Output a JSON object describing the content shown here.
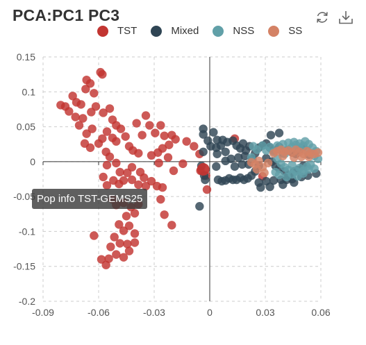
{
  "title": "PCA:PC1 PC3",
  "toolbar": {
    "refresh_icon": "refresh-icon",
    "download_icon": "download-icon"
  },
  "tooltip": {
    "text": "Pop info TST-GEMS25"
  },
  "chart_data": {
    "type": "scatter",
    "title": "PCA:PC1 PC3",
    "xlabel": "",
    "ylabel": "",
    "xlim": [
      -0.09,
      0.06
    ],
    "ylim": [
      -0.2,
      0.15
    ],
    "xticks": [
      "-0.09",
      "-0.06",
      "-0.03",
      "0",
      "0.03",
      "0.06"
    ],
    "yticks": [
      "0.15",
      "0.1",
      "0.05",
      "0",
      "-0.05",
      "-0.1",
      "-0.15",
      "-0.2"
    ],
    "grid": true,
    "legend_position": "top",
    "series": [
      {
        "name": "TST",
        "color": "#c23531",
        "points": [
          [
            -0.0805,
            0.081
          ],
          [
            -0.078,
            0.079
          ],
          [
            -0.076,
            0.072
          ],
          [
            -0.074,
            0.094
          ],
          [
            -0.072,
            0.085
          ],
          [
            -0.0695,
            0.082
          ],
          [
            -0.067,
            0.104
          ],
          [
            -0.0665,
            0.117
          ],
          [
            -0.0645,
            0.112
          ],
          [
            -0.0625,
            0.098
          ],
          [
            -0.0615,
            0.079
          ],
          [
            -0.064,
            0.071
          ],
          [
            -0.0725,
            0.064
          ],
          [
            -0.0685,
            0.062
          ],
          [
            -0.0635,
            0.047
          ],
          [
            -0.0705,
            0.052
          ],
          [
            -0.0665,
            0.04
          ],
          [
            -0.0675,
            0.026
          ],
          [
            -0.0645,
            0.02
          ],
          [
            -0.059,
            0.128
          ],
          [
            -0.058,
            0.125
          ],
          [
            -0.0575,
            0.07
          ],
          [
            -0.054,
            0.076
          ],
          [
            -0.0525,
            0.06
          ],
          [
            -0.0505,
            0.052
          ],
          [
            -0.048,
            0.047
          ],
          [
            -0.0555,
            0.043
          ],
          [
            -0.058,
            0.033
          ],
          [
            -0.0525,
            0.034
          ],
          [
            -0.06,
            0.026
          ],
          [
            -0.056,
            0.014
          ],
          [
            -0.0505,
            0.029
          ],
          [
            -0.0455,
            0.036
          ],
          [
            -0.0435,
            0.022
          ],
          [
            -0.0415,
            0.016
          ],
          [
            -0.0395,
            0.055
          ],
          [
            -0.0345,
            0.066
          ],
          [
            -0.0325,
            0.052
          ],
          [
            -0.0295,
            0.041
          ],
          [
            -0.0265,
            0.052
          ],
          [
            -0.0245,
            0.037
          ],
          [
            -0.0205,
            0.038
          ],
          [
            -0.0185,
            0.032
          ],
          [
            -0.022,
            0.024
          ],
          [
            -0.0255,
            0.019
          ],
          [
            -0.028,
            0.013
          ],
          [
            -0.0315,
            0.009
          ],
          [
            -0.0365,
            0.038
          ],
          [
            -0.0385,
            0.012
          ],
          [
            -0.0275,
            -0.002
          ],
          [
            -0.0225,
            0.006
          ],
          [
            -0.0195,
            -0.013
          ],
          [
            -0.0145,
            -0.003
          ],
          [
            -0.0125,
            0.029
          ],
          [
            -0.0085,
            0.022
          ],
          [
            -0.0055,
            0.011
          ],
          [
            -0.054,
            0.007
          ],
          [
            -0.0555,
            -0.005
          ],
          [
            -0.0505,
            -0.002
          ],
          [
            -0.0485,
            -0.015
          ],
          [
            -0.0445,
            -0.016
          ],
          [
            -0.042,
            -0.008
          ],
          [
            -0.052,
            -0.027
          ],
          [
            -0.049,
            -0.032
          ],
          [
            -0.0465,
            -0.027
          ],
          [
            -0.042,
            -0.026
          ],
          [
            -0.0355,
            -0.023
          ],
          [
            -0.0385,
            -0.033
          ],
          [
            -0.0345,
            -0.035
          ],
          [
            -0.0315,
            -0.028
          ],
          [
            -0.0285,
            -0.035
          ],
          [
            -0.0255,
            -0.037
          ],
          [
            -0.0265,
            -0.054
          ],
          [
            -0.0245,
            -0.076
          ],
          [
            -0.0205,
            -0.091
          ],
          [
            -0.0525,
            -0.054
          ],
          [
            -0.0505,
            -0.062
          ],
          [
            -0.0465,
            -0.059
          ],
          [
            -0.0425,
            -0.065
          ],
          [
            -0.0385,
            -0.061
          ],
          [
            -0.0405,
            -0.074
          ],
          [
            -0.045,
            -0.078
          ],
          [
            -0.049,
            -0.09
          ],
          [
            -0.0465,
            -0.099
          ],
          [
            -0.0435,
            -0.092
          ],
          [
            -0.0405,
            -0.103
          ],
          [
            -0.0515,
            -0.108
          ],
          [
            -0.0485,
            -0.117
          ],
          [
            -0.0445,
            -0.118
          ],
          [
            -0.0405,
            -0.116
          ],
          [
            -0.0535,
            -0.122
          ],
          [
            -0.0505,
            -0.133
          ],
          [
            -0.0465,
            -0.137
          ],
          [
            -0.0435,
            -0.128
          ],
          [
            -0.0585,
            -0.14
          ],
          [
            -0.056,
            -0.148
          ],
          [
            -0.0545,
            -0.139
          ],
          [
            -0.0625,
            -0.106
          ],
          [
            -0.0575,
            -0.022
          ],
          [
            -0.0555,
            -0.034
          ],
          [
            -0.005,
            -0.013
          ],
          [
            -0.002,
            -0.02
          ],
          [
            -0.0015,
            -0.04
          ],
          [
            0.0135,
            0.033
          ],
          [
            0.0285,
            -0.021
          ],
          [
            -0.0375,
            -0.015
          ]
        ]
      },
      {
        "name": "Mixed",
        "color": "#2f4554",
        "points": [
          [
            -0.0035,
            0.047
          ],
          [
            -0.0035,
            0.039
          ],
          [
            -0.001,
            0.03
          ],
          [
            0.002,
            0.042
          ],
          [
            0.004,
            0.031
          ],
          [
            0.007,
            0.031
          ],
          [
            0.0005,
            0.022
          ],
          [
            0.0035,
            0.02
          ],
          [
            -0.0035,
            0.014
          ],
          [
            0.004,
            0.011
          ],
          [
            -0.0045,
            -0.006
          ],
          [
            0.0035,
            -0.007
          ],
          [
            -0.003,
            -0.02
          ],
          [
            -0.0025,
            -0.026
          ],
          [
            -0.0055,
            -0.064
          ],
          [
            0.006,
            0.023
          ],
          [
            0.0085,
            0.014
          ],
          [
            0.0095,
            0.028
          ],
          [
            0.0125,
            0.03
          ],
          [
            0.0145,
            0.023
          ],
          [
            0.0165,
            0.019
          ],
          [
            0.018,
            0.026
          ],
          [
            0.0195,
            0.016
          ],
          [
            0.0215,
            0.022
          ],
          [
            0.0085,
            0.001
          ],
          [
            0.0115,
            0.004
          ],
          [
            0.0135,
            -0.007
          ],
          [
            0.0155,
            0.006
          ],
          [
            0.0175,
            -0.004
          ],
          [
            0.019,
            0.008
          ],
          [
            0.021,
            -0.004
          ],
          [
            0.023,
            0.004
          ],
          [
            0.0245,
            0.012
          ],
          [
            0.0265,
            0.02
          ],
          [
            0.0285,
            0.023
          ],
          [
            0.0305,
            0.026
          ],
          [
            0.0325,
            0.02
          ],
          [
            0.0345,
            0.016
          ],
          [
            0.0375,
            0.021
          ],
          [
            0.0395,
            0.012
          ],
          [
            0.0415,
            0.016
          ],
          [
            0.0445,
            0.013
          ],
          [
            0.0465,
            0.011
          ],
          [
            0.0485,
            0.017
          ],
          [
            0.0505,
            0.021
          ],
          [
            0.0535,
            0.01
          ],
          [
            0.0305,
            0.005
          ],
          [
            0.0335,
            0.0
          ],
          [
            0.0355,
            -0.006
          ],
          [
            0.0375,
            -0.01
          ],
          [
            0.0405,
            -0.014
          ],
          [
            0.0425,
            -0.02
          ],
          [
            0.0455,
            -0.014
          ],
          [
            0.0475,
            -0.012
          ],
          [
            0.0505,
            -0.006
          ],
          [
            0.0265,
            -0.006
          ],
          [
            0.0245,
            -0.014
          ],
          [
            0.0225,
            -0.02
          ],
          [
            0.0205,
            -0.024
          ],
          [
            0.0185,
            -0.026
          ],
          [
            0.0165,
            -0.023
          ],
          [
            0.0145,
            -0.026
          ],
          [
            0.0125,
            -0.026
          ],
          [
            0.0105,
            -0.024
          ],
          [
            0.0085,
            -0.027
          ],
          [
            0.0065,
            -0.028
          ],
          [
            0.0045,
            -0.026
          ],
          [
            0.0265,
            -0.03
          ],
          [
            0.0305,
            -0.028
          ],
          [
            0.0345,
            -0.027
          ],
          [
            0.0385,
            -0.026
          ],
          [
            0.0415,
            -0.026
          ],
          [
            0.0445,
            -0.025
          ],
          [
            0.0495,
            -0.022
          ],
          [
            0.053,
            -0.02
          ],
          [
            0.0575,
            -0.017
          ],
          [
            0.0275,
            -0.037
          ],
          [
            0.0325,
            -0.036
          ],
          [
            0.0395,
            -0.033
          ],
          [
            0.0455,
            -0.03
          ],
          [
            0.033,
            0.038
          ],
          [
            0.0375,
            0.041
          ]
        ]
      },
      {
        "name": "NSS",
        "color": "#61a0a8",
        "points": [
          [
            0.0285,
            0.023
          ],
          [
            0.0305,
            0.016
          ],
          [
            0.0325,
            0.021
          ],
          [
            0.0345,
            0.014
          ],
          [
            0.0365,
            0.023
          ],
          [
            0.0385,
            0.016
          ],
          [
            0.0405,
            0.011
          ],
          [
            0.0425,
            0.017
          ],
          [
            0.0445,
            0.021
          ],
          [
            0.0465,
            0.024
          ],
          [
            0.0485,
            0.026
          ],
          [
            0.0505,
            0.023
          ],
          [
            0.0525,
            0.016
          ],
          [
            0.0545,
            0.012
          ],
          [
            0.0565,
            0.008
          ],
          [
            0.0365,
            0.004
          ],
          [
            0.0385,
            -0.003
          ],
          [
            0.0405,
            -0.008
          ],
          [
            0.0425,
            -0.012
          ],
          [
            0.0445,
            -0.005
          ],
          [
            0.0465,
            -0.014
          ],
          [
            0.0485,
            -0.009
          ],
          [
            0.0505,
            -0.013
          ],
          [
            0.0525,
            -0.007
          ],
          [
            0.0545,
            -0.004
          ],
          [
            0.0395,
            0.025
          ],
          [
            0.0425,
            0.027
          ],
          [
            0.0455,
            0.028
          ],
          [
            0.0485,
            0.019
          ],
          [
            0.0515,
            0.029
          ],
          [
            0.0535,
            0.025
          ],
          [
            0.0555,
            0.02
          ],
          [
            0.0575,
            0.015
          ],
          [
            0.0355,
            -0.015
          ],
          [
            0.0375,
            -0.019
          ],
          [
            0.0415,
            -0.022
          ],
          [
            0.0445,
            -0.018
          ],
          [
            0.0475,
            -0.021
          ],
          [
            0.0505,
            -0.017
          ],
          [
            0.0535,
            -0.011
          ],
          [
            0.0235,
            0.022
          ],
          [
            0.0255,
            0.017
          ],
          [
            0.0225,
            0.006
          ],
          [
            0.0565,
            -0.01
          ],
          [
            0.0585,
            0.004
          ]
        ]
      },
      {
        "name": "SS",
        "color": "#d48265",
        "points": [
          [
            0.0245,
            -0.004
          ],
          [
            0.0265,
            0.001
          ],
          [
            0.0285,
            -0.008
          ],
          [
            0.0255,
            -0.011
          ],
          [
            0.0295,
            -0.016
          ],
          [
            0.0315,
            -0.002
          ],
          [
            0.0225,
            -0.001
          ],
          [
            0.0345,
            0.012
          ],
          [
            0.0365,
            0.015
          ],
          [
            0.0385,
            0.017
          ],
          [
            0.0405,
            0.014
          ],
          [
            0.0425,
            0.016
          ],
          [
            0.0445,
            0.013
          ],
          [
            0.0465,
            0.017
          ],
          [
            0.0485,
            0.014
          ],
          [
            0.0505,
            0.011
          ],
          [
            0.0525,
            0.015
          ],
          [
            0.0545,
            0.012
          ],
          [
            0.0565,
            0.011
          ],
          [
            0.0585,
            0.013
          ],
          [
            0.0395,
            0.008
          ],
          [
            0.0455,
            0.006
          ],
          [
            0.0495,
            0.007
          ],
          [
            0.0535,
            0.007
          ]
        ]
      }
    ],
    "highlight": {
      "series": "TST",
      "label": "TST-GEMS25",
      "x": -0.0035,
      "y": -0.011
    }
  }
}
